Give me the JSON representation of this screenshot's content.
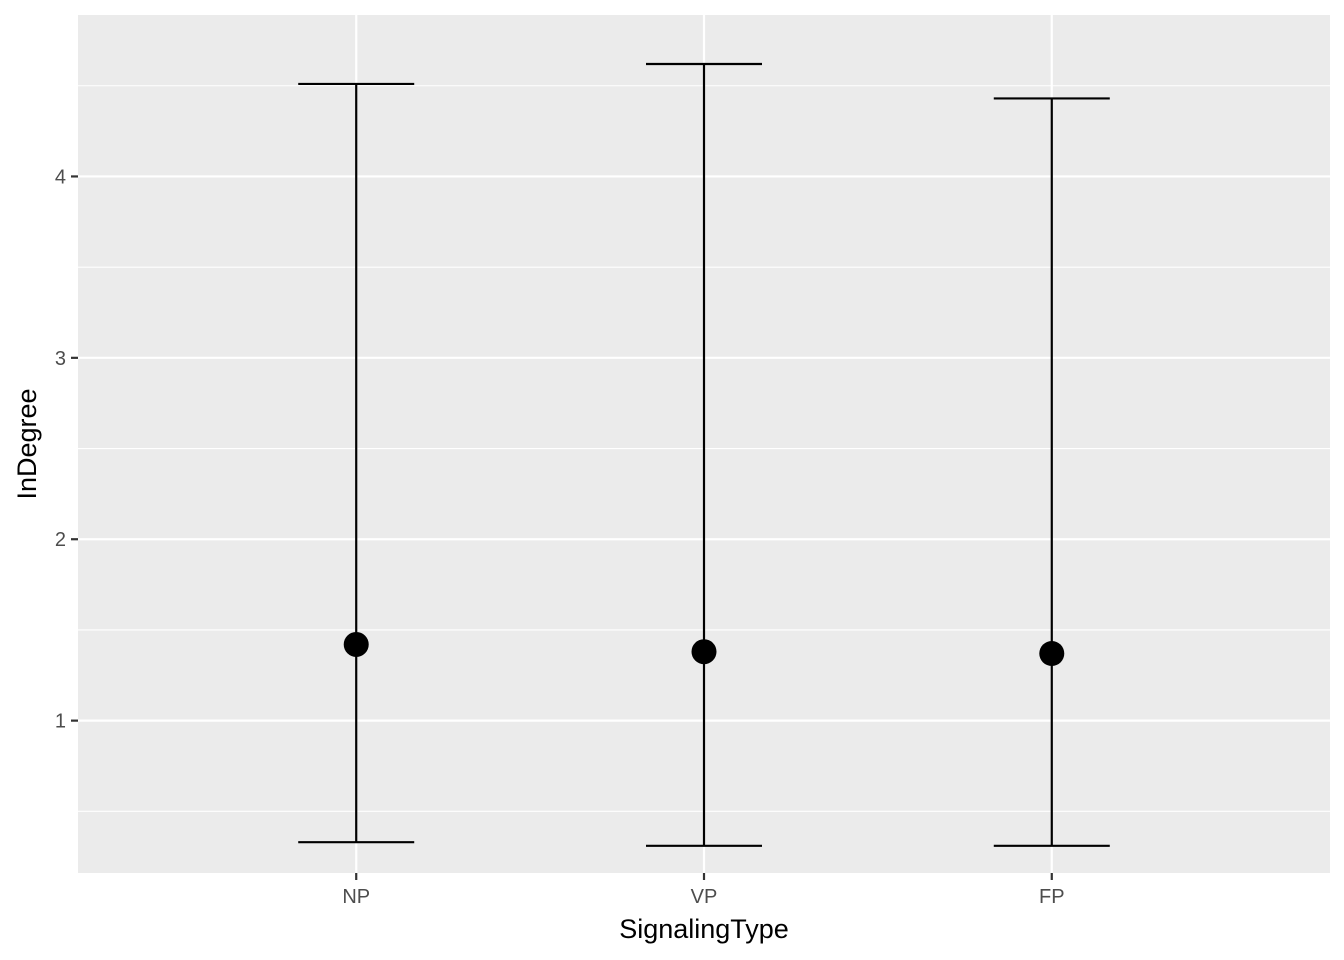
{
  "chart_data": {
    "type": "errorbar",
    "xlabel": "SignalingType",
    "ylabel": "InDegree",
    "categories": [
      "NP",
      "VP",
      "FP"
    ],
    "points": [
      {
        "category": "NP",
        "mean": 1.42,
        "lower": 0.33,
        "upper": 4.51
      },
      {
        "category": "VP",
        "mean": 1.38,
        "lower": 0.31,
        "upper": 4.62
      },
      {
        "category": "FP",
        "mean": 1.37,
        "lower": 0.31,
        "upper": 4.43
      }
    ],
    "ylim": [
      0.16,
      4.89
    ],
    "yticks": [
      1,
      2,
      3,
      4
    ],
    "yticks_minor": [
      0.5,
      1.5,
      2.5,
      3.5,
      4.5
    ],
    "grid": true,
    "legend": "none",
    "colors": {
      "panel_background": "#ebebeb",
      "grid_line": "#ffffff",
      "axis_text": "#4d4d4d",
      "axis_tick": "#333333",
      "marks": "#000000"
    }
  }
}
